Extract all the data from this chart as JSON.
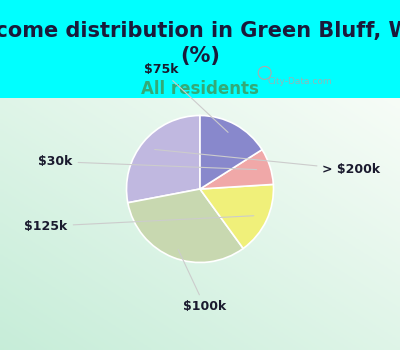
{
  "title": "Income distribution in Green Bluff, WA\n(%)",
  "subtitle": "All residents",
  "labels": [
    "> $200k",
    "$100k",
    "$125k",
    "$30k",
    "$75k"
  ],
  "sizes": [
    28,
    32,
    16,
    8,
    16
  ],
  "colors": [
    "#c0b8e0",
    "#c8d8b0",
    "#f0f07a",
    "#f0a8a8",
    "#8888cc"
  ],
  "startangle": 90,
  "bg_color_top": "#00ffff",
  "title_color": "#1a1a3a",
  "subtitle_color": "#33aa77",
  "title_fontsize": 15,
  "subtitle_fontsize": 12,
  "label_fontsize": 9
}
